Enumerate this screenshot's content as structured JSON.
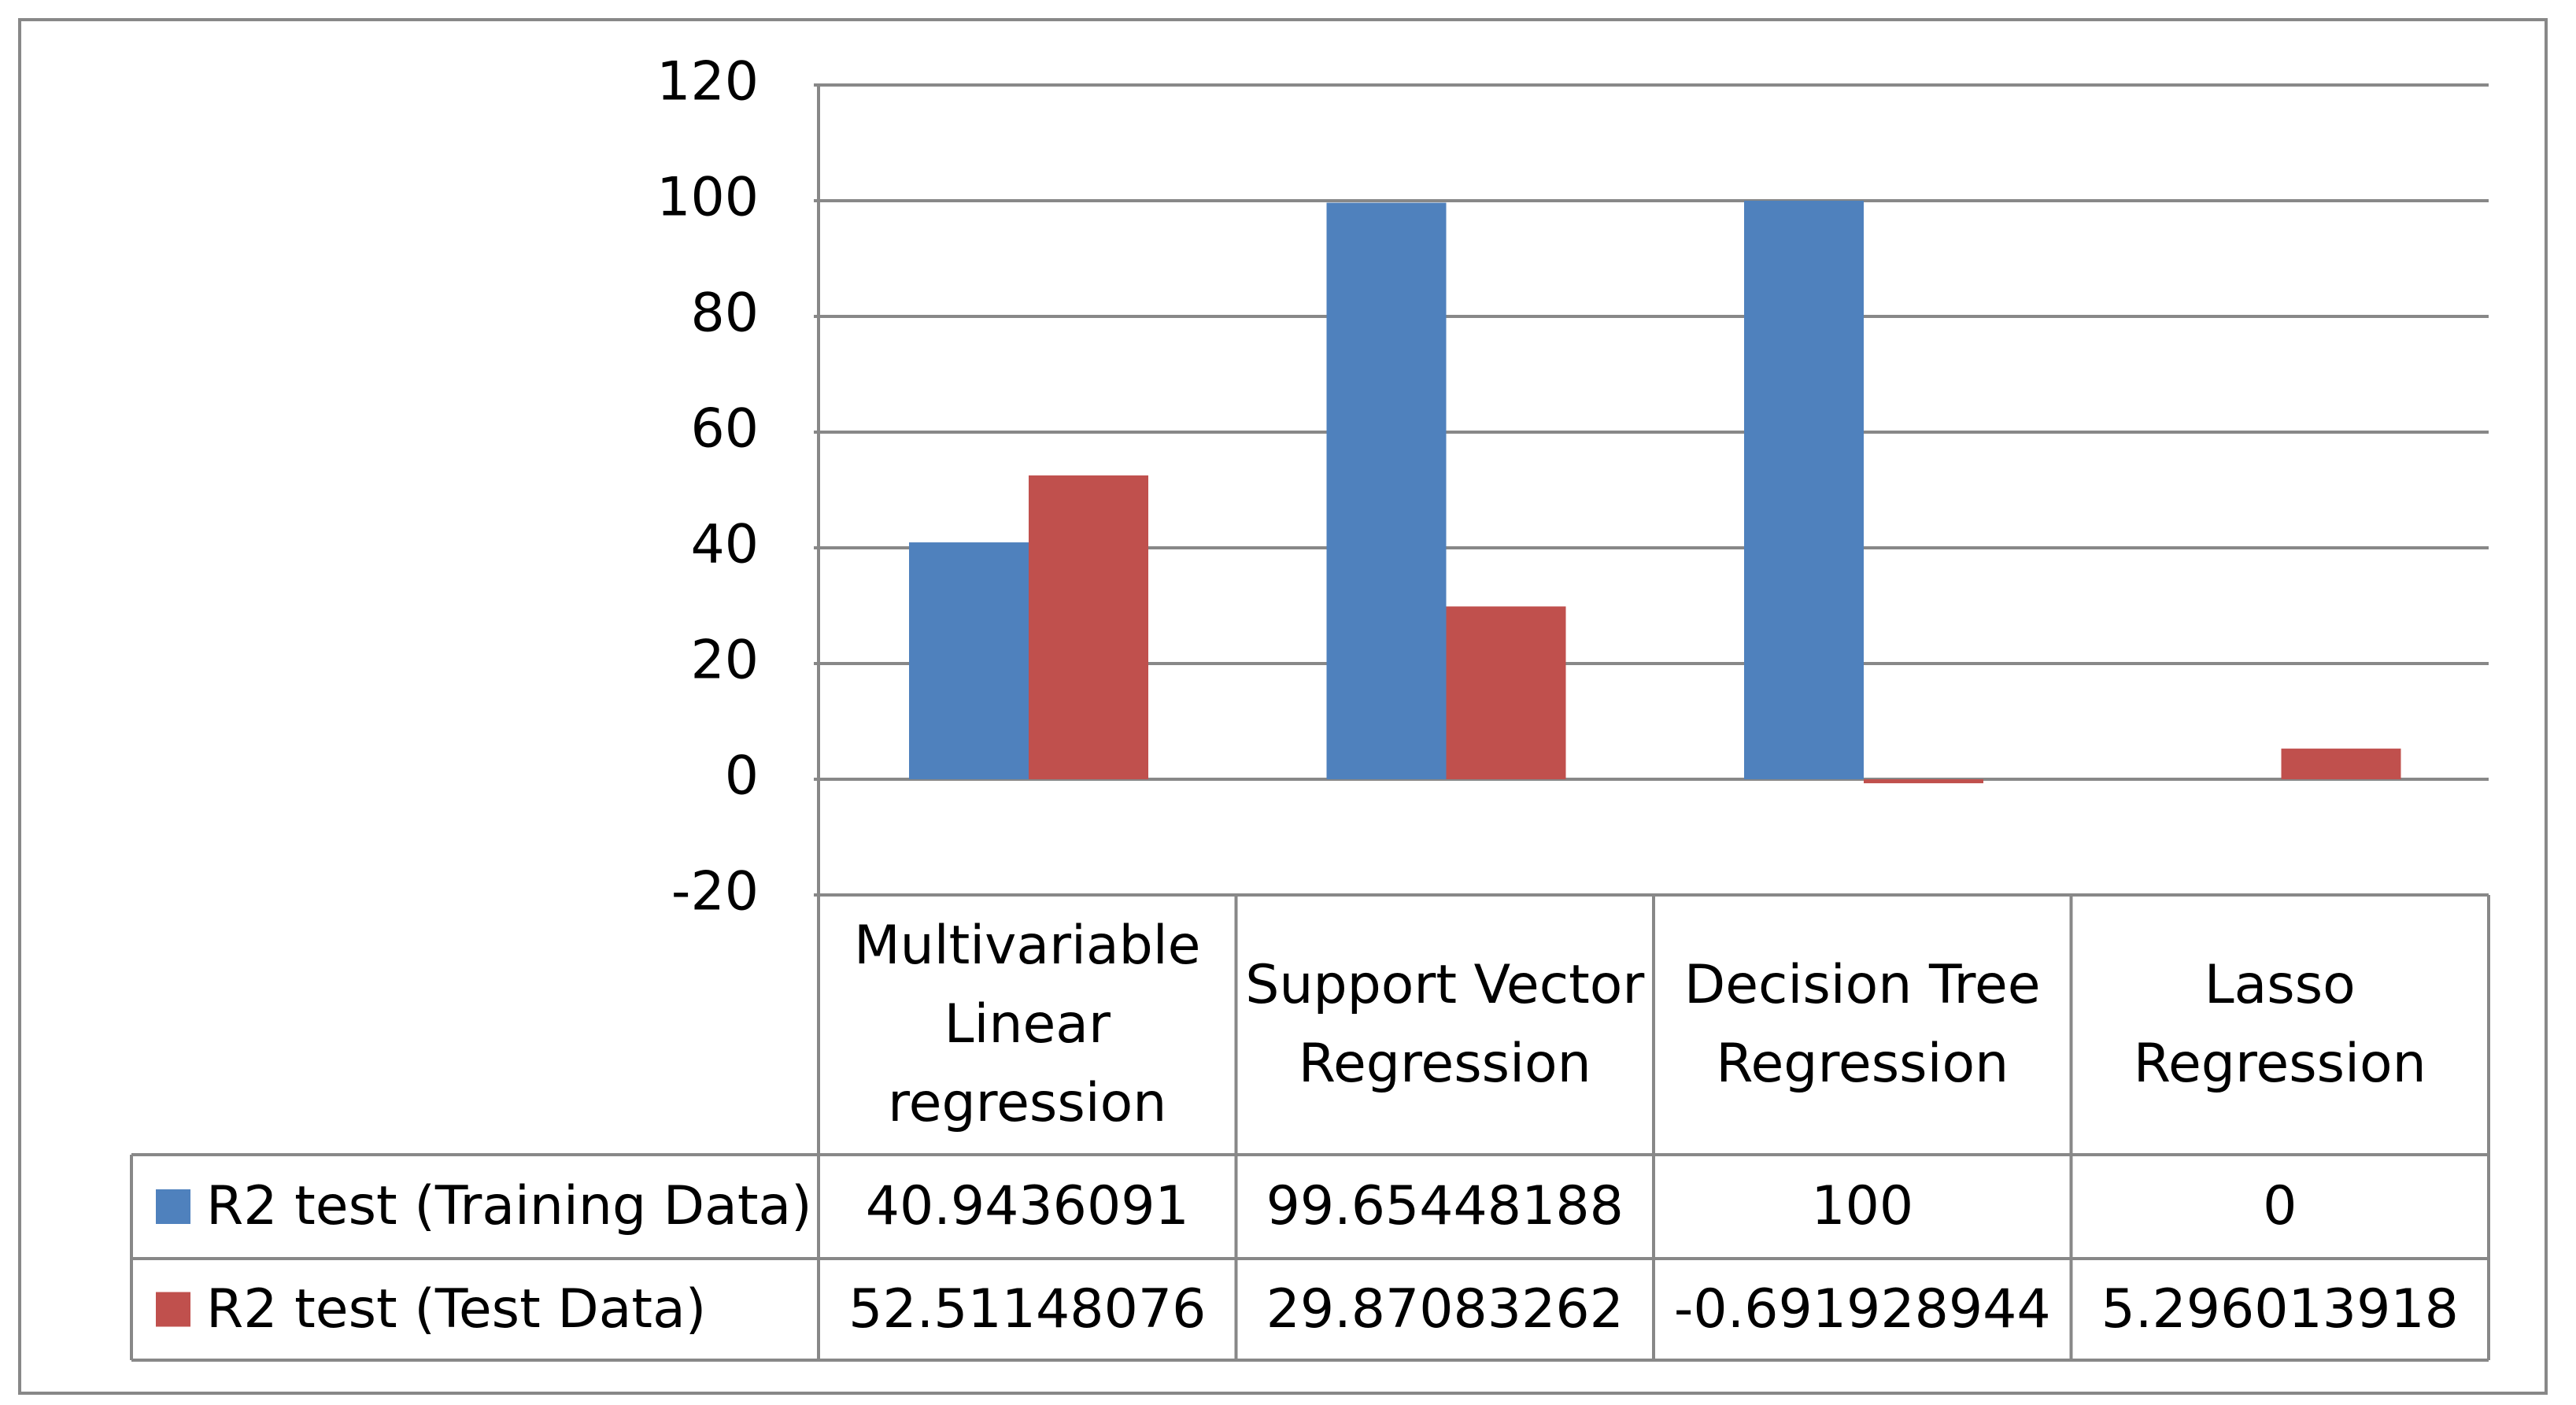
{
  "chart_data": {
    "type": "bar",
    "categories": [
      "Multivariable Linear regression",
      "Support Vector Regression",
      "Decision Tree Regression",
      "Lasso Regression"
    ],
    "series": [
      {
        "name": "R2 test (Training Data)",
        "color": "#4f81bd",
        "values": [
          40.9436091,
          99.65448188,
          100,
          0
        ]
      },
      {
        "name": "R2 test (Test Data)",
        "color": "#c0504d",
        "values": [
          52.51148076,
          29.87083262,
          -0.691928944,
          5.296013918
        ]
      }
    ],
    "ylim": [
      -20,
      120
    ],
    "yticks": [
      -20,
      0,
      20,
      40,
      60,
      80,
      100,
      120
    ],
    "grid": true,
    "data_table": true
  }
}
